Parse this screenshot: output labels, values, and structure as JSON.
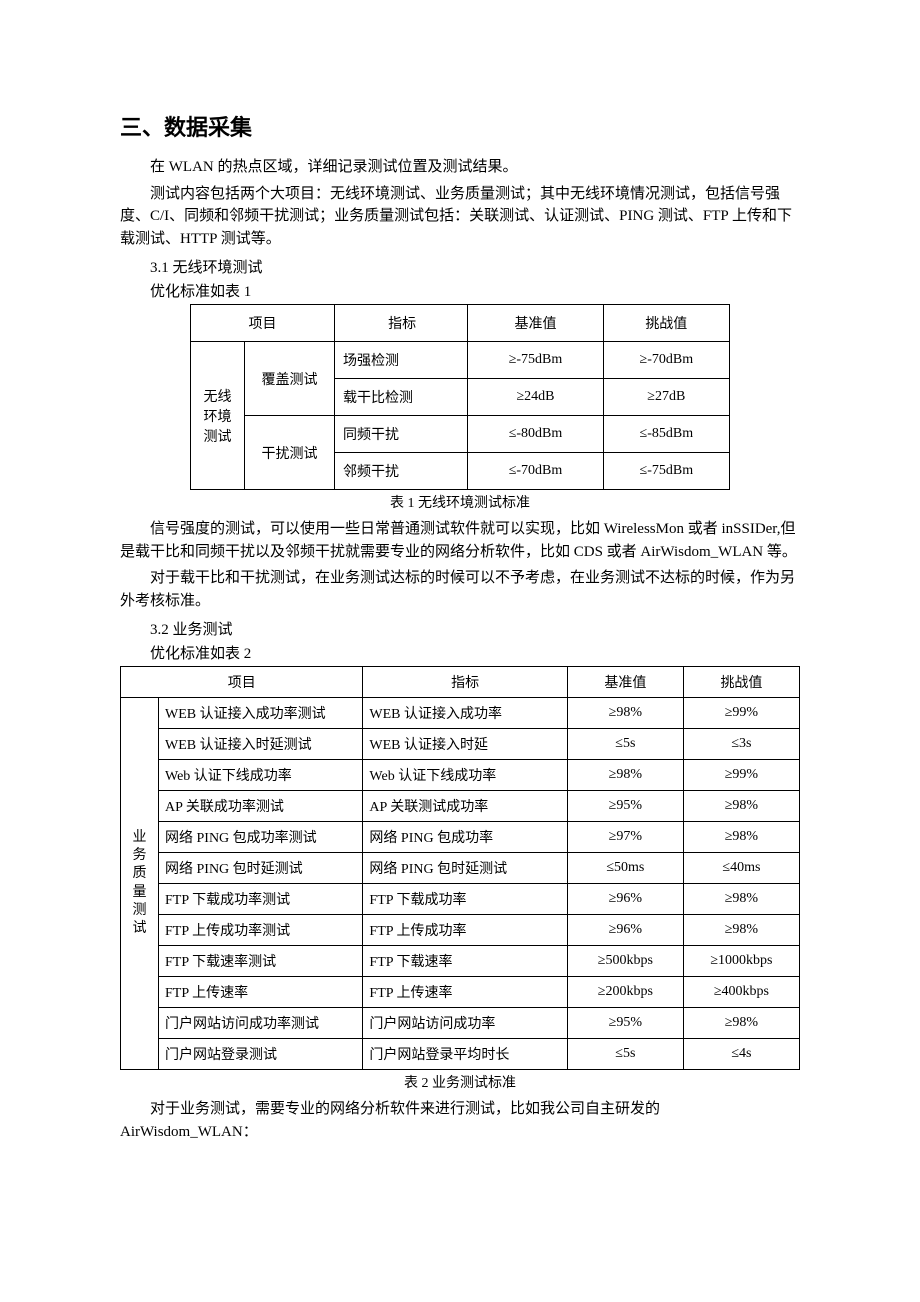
{
  "doc": {
    "heading": "三、数据采集",
    "p1": "在 WLAN 的热点区域，详细记录测试位置及测试结果。",
    "p2": "测试内容包括两个大项目：无线环境测试、业务质量测试；其中无线环境情况测试，包括信号强度、C/I、同频和邻频干扰测试；业务质量测试包括：关联测试、认证测试、PING 测试、FTP 上传和下载测试、HTTP 测试等。",
    "s31": "3.1 无线环境测试",
    "s31_note": "优化标准如表 1",
    "table1": {
      "caption": "表 1 无线环境测试标准",
      "h_project": "项目",
      "h_indicator": "指标",
      "h_base": "基准值",
      "h_challenge": "挑战值",
      "cat": "无线环境测试",
      "sub1": "覆盖测试",
      "sub2": "干扰测试",
      "rows": [
        {
          "ind": "场强检测",
          "base": "≥-75dBm",
          "chal": "≥-70dBm"
        },
        {
          "ind": "载干比检测",
          "base": "≥24dB",
          "chal": "≥27dB"
        },
        {
          "ind": "同频干扰",
          "base": "≤-80dBm",
          "chal": "≤-85dBm"
        },
        {
          "ind": "邻频干扰",
          "base": "≤-70dBm",
          "chal": "≤-75dBm"
        }
      ]
    },
    "p3": "信号强度的测试，可以使用一些日常普通测试软件就可以实现，比如 WirelessMon 或者 inSSIDer,但是载干比和同频干扰以及邻频干扰就需要专业的网络分析软件，比如 CDS 或者 AirWisdom_WLAN 等。",
    "p4": "对于载干比和干扰测试，在业务测试达标的时候可以不予考虑，在业务测试不达标的时候，作为另外考核标准。",
    "s32": "3.2 业务测试",
    "s32_note": "优化标准如表 2",
    "table2": {
      "caption": "表 2 业务测试标准",
      "h_project": "项目",
      "h_indicator": "指标",
      "h_base": "基准值",
      "h_challenge": "挑战值",
      "cat": "业务质量测试",
      "rows": [
        {
          "name": "WEB 认证接入成功率测试",
          "ind": "WEB 认证接入成功率",
          "base": "≥98%",
          "chal": "≥99%"
        },
        {
          "name": "WEB 认证接入时延测试",
          "ind": "WEB 认证接入时延",
          "base": "≤5s",
          "chal": "≤3s"
        },
        {
          "name": "Web 认证下线成功率",
          "ind": "Web 认证下线成功率",
          "base": "≥98%",
          "chal": "≥99%"
        },
        {
          "name": "AP 关联成功率测试",
          "ind": "AP 关联测试成功率",
          "base": "≥95%",
          "chal": "≥98%"
        },
        {
          "name": "网络 PING 包成功率测试",
          "ind": "网络 PING 包成功率",
          "base": "≥97%",
          "chal": "≥98%"
        },
        {
          "name": "网络 PING 包时延测试",
          "ind": "网络 PING 包时延测试",
          "base": "≤50ms",
          "chal": "≤40ms"
        },
        {
          "name": "FTP 下载成功率测试",
          "ind": "FTP 下载成功率",
          "base": "≥96%",
          "chal": "≥98%"
        },
        {
          "name": "FTP 上传成功率测试",
          "ind": "FTP 上传成功率",
          "base": "≥96%",
          "chal": "≥98%"
        },
        {
          "name": "FTP 下载速率测试",
          "ind": "FTP 下载速率",
          "base": "≥500kbps",
          "chal": "≥1000kbps"
        },
        {
          "name": "FTP 上传速率",
          "ind": "FTP 上传速率",
          "base": "≥200kbps",
          "chal": "≥400kbps"
        },
        {
          "name": "门户网站访问成功率测试",
          "ind": "门户网站访问成功率",
          "base": "≥95%",
          "chal": "≥98%"
        },
        {
          "name": "门户网站登录测试",
          "ind": "门户网站登录平均时长",
          "base": "≤5s",
          "chal": "≤4s"
        }
      ]
    },
    "p5": "对于业务测试，需要专业的网络分析软件来进行测试，比如我公司自主研发的 AirWisdom_WLAN："
  }
}
